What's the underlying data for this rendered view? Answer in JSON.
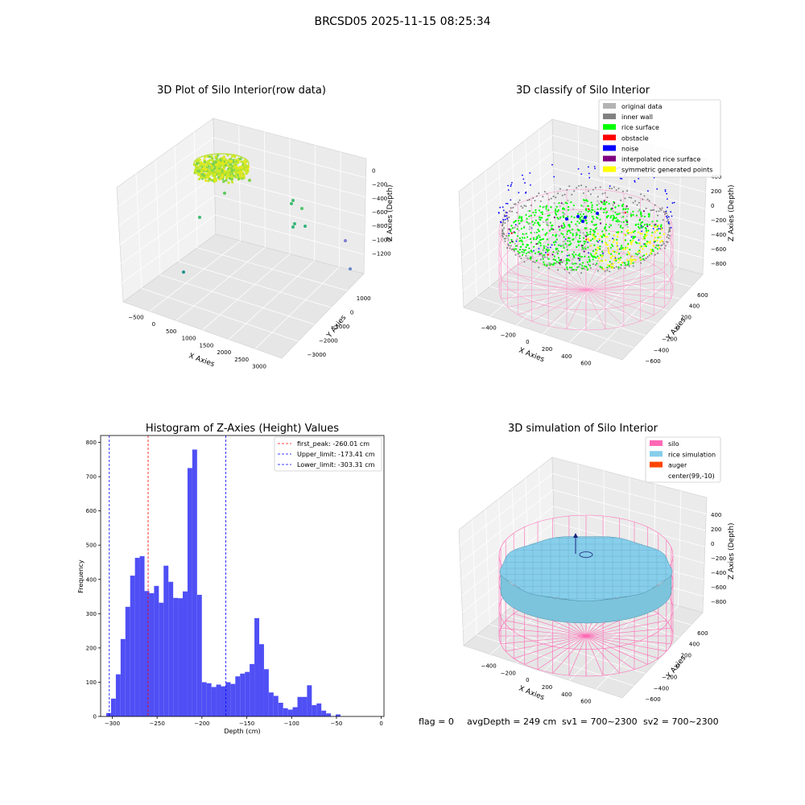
{
  "suptitle": "BRCSD05 2025-11-15 08:25:34",
  "footer": {
    "flag": "flag = 0",
    "avg_depth": "avgDepth = 249 cm",
    "sv1": "sv1 = 700~2300",
    "sv2": "sv2 = 700~2300"
  },
  "chart_data": [
    {
      "type": "scatter",
      "title": "3D Plot of Silo Interior(row data)",
      "xlabel": "X Axies",
      "ylabel": "Y Axies",
      "zlabel": "Z Axies (Depth)",
      "x_ticks": [
        "−500",
        "0",
        "500",
        "1000",
        "1500",
        "2000",
        "2500",
        "3000"
      ],
      "y_ticks": [
        "1000",
        "0",
        "−1000",
        "−2000",
        "−3000"
      ],
      "z_ticks": [
        "0",
        "−200",
        "−400",
        "−600",
        "−800",
        "−1000",
        "−1200"
      ]
    },
    {
      "type": "scatter",
      "title": "3D classify of Silo Interior",
      "xlabel": "X Axies",
      "ylabel": "Y Axies",
      "zlabel": "Z Axies (Depth)",
      "x_ticks": [
        "−400",
        "−200",
        "0",
        "200",
        "400",
        "600"
      ],
      "y_ticks": [
        "600",
        "400",
        "200",
        "0",
        "−200",
        "−400",
        "−600"
      ],
      "z_ticks": [
        "400",
        "200",
        "0",
        "−200",
        "−400",
        "−600",
        "−800"
      ],
      "legend": [
        {
          "label": "original data",
          "color": "#b3b3b3"
        },
        {
          "label": "inner wall",
          "color": "#808080"
        },
        {
          "label": "rice surface",
          "color": "#00ff00"
        },
        {
          "label": "obstacle",
          "color": "#ff0000"
        },
        {
          "label": "noise",
          "color": "#0000ff"
        },
        {
          "label": "interpolated rice surface",
          "color": "#800080"
        },
        {
          "label": "symmetric generated points",
          "color": "#ffff00"
        }
      ],
      "legend_placement": "top-right"
    },
    {
      "type": "bar",
      "title": "Histogram of Z-Axies (Height) Values",
      "xlabel": "Depth (cm)",
      "ylabel": "Frequency",
      "xlim": [
        -313,
        3
      ],
      "ylim": [
        0,
        820
      ],
      "x_ticks": [
        -300,
        -250,
        -200,
        -150,
        -100,
        -50,
        0
      ],
      "x_tick_labels": [
        "−300",
        "−250",
        "−200",
        "−150",
        "−100",
        "−50",
        "0"
      ],
      "y_ticks": [
        0,
        100,
        200,
        300,
        400,
        500,
        600,
        700,
        800
      ],
      "bin_width": 5.33,
      "bin_start": -306.7,
      "values": [
        10,
        52,
        123,
        226,
        320,
        411,
        463,
        468,
        366,
        360,
        381,
        332,
        440,
        393,
        346,
        345,
        365,
        725,
        779,
        355,
        100,
        97,
        86,
        93,
        88,
        100,
        95,
        117,
        125,
        130,
        153,
        287,
        211,
        138,
        70,
        60,
        40,
        24,
        20,
        27,
        57,
        57,
        91,
        33,
        38,
        17,
        9,
        1,
        6
      ],
      "color": "#4f4ff5",
      "lines": [
        {
          "label": "first_peak: -260.01 cm",
          "x": -260.01,
          "color": "#ff0000"
        },
        {
          "label": "Upper_limit: -173.41 cm",
          "x": -173.41,
          "color": "#0000ff"
        },
        {
          "label": "Lower_limit: -303.31 cm",
          "x": -303.31,
          "color": "#0000ff"
        }
      ],
      "legend_placement": "top-right"
    },
    {
      "type": "scatter",
      "title": "3D simulation of Silo Interior",
      "xlabel": "X Axies",
      "ylabel": "Y Axies",
      "zlabel": "Z Axies (Depth)",
      "x_ticks": [
        "−400",
        "−200",
        "0",
        "200",
        "400",
        "600"
      ],
      "y_ticks": [
        "600",
        "400",
        "200",
        "0",
        "−200",
        "−400",
        "−600"
      ],
      "z_ticks": [
        "400",
        "200",
        "0",
        "−200",
        "−400",
        "−600",
        "−800"
      ],
      "legend": [
        {
          "label": "silo",
          "color": "#ff69b4"
        },
        {
          "label": "rice simulation",
          "color": "#87ceeb"
        },
        {
          "label": "auger",
          "color": "#ff4500"
        },
        {
          "label": "center(99,-10)",
          "color": "#ffffff"
        }
      ],
      "legend_placement": "top-right"
    }
  ]
}
